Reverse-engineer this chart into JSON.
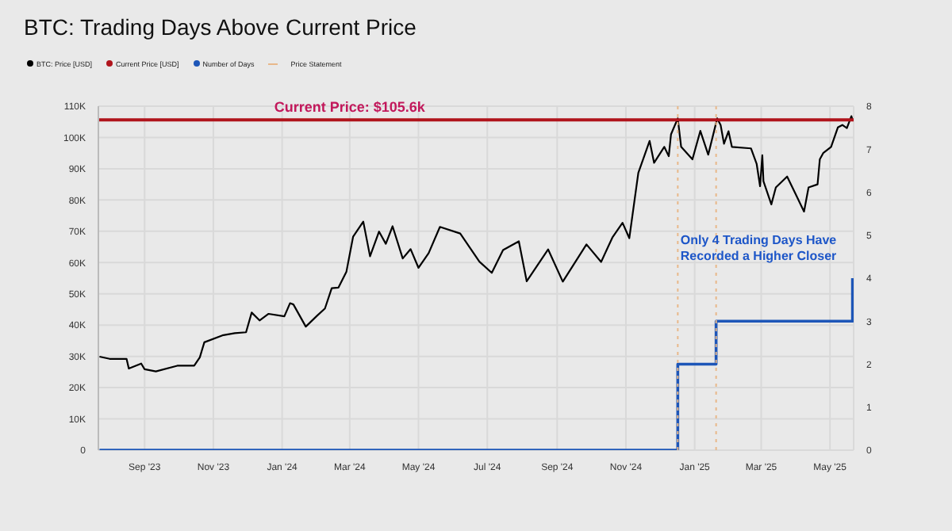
{
  "chart_data": {
    "type": "line",
    "title": "BTC: Trading Days Above Current Price",
    "xlim": [
      "2023-07-22",
      "2025-05-22"
    ],
    "xticks": [
      {
        "value": "2023-09-01",
        "label": "Sep '23"
      },
      {
        "value": "2023-11-01",
        "label": "Nov '23"
      },
      {
        "value": "2024-01-01",
        "label": "Jan '24"
      },
      {
        "value": "2024-03-01",
        "label": "Mar '24"
      },
      {
        "value": "2024-05-01",
        "label": "May '24"
      },
      {
        "value": "2024-07-01",
        "label": "Jul '24"
      },
      {
        "value": "2024-09-01",
        "label": "Sep '24"
      },
      {
        "value": "2024-11-01",
        "label": "Nov '24"
      },
      {
        "value": "2025-01-01",
        "label": "Jan '25"
      },
      {
        "value": "2025-03-01",
        "label": "Mar '25"
      },
      {
        "value": "2025-05-01",
        "label": "May '25"
      }
    ],
    "ylim": [
      0,
      110000
    ],
    "yticks": [
      0,
      {
        "value": 10000,
        "label": "10K"
      },
      {
        "value": 20000,
        "label": "20K"
      },
      {
        "value": 30000,
        "label": "30K"
      },
      {
        "value": 40000,
        "label": "40K"
      },
      {
        "value": 50000,
        "label": "50K"
      },
      {
        "value": 60000,
        "label": "60K"
      },
      {
        "value": 70000,
        "label": "70K"
      },
      {
        "value": 80000,
        "label": "80K"
      },
      {
        "value": 90000,
        "label": "90K"
      },
      {
        "value": 100000,
        "label": "100K"
      },
      {
        "value": 110000,
        "label": "110K"
      }
    ],
    "y2lim": [
      0,
      8
    ],
    "y2ticks": [
      0,
      1,
      2,
      3,
      4,
      5,
      6,
      7,
      8
    ],
    "grid": true,
    "legend": "top left",
    "marker": "none",
    "series": [
      {
        "name": "BTC: Price [USD]",
        "color": "#000000",
        "x": [
          "2023-07-23",
          "2023-08-01",
          "2023-08-16",
          "2023-08-18",
          "2023-08-29",
          "2023-09-01",
          "2023-09-11",
          "2023-09-30",
          "2023-10-15",
          "2023-10-20",
          "2023-10-24",
          "2023-11-09",
          "2023-11-20",
          "2023-11-30",
          "2023-12-05",
          "2023-12-12",
          "2023-12-20",
          "2024-01-03",
          "2024-01-08",
          "2024-01-11",
          "2024-01-22",
          "2024-02-01",
          "2024-02-08",
          "2024-02-14",
          "2024-02-20",
          "2024-02-27",
          "2024-03-04",
          "2024-03-13",
          "2024-03-19",
          "2024-03-27",
          "2024-04-02",
          "2024-04-08",
          "2024-04-17",
          "2024-04-24",
          "2024-05-01",
          "2024-05-10",
          "2024-05-20",
          "2024-06-07",
          "2024-06-24",
          "2024-07-05",
          "2024-07-15",
          "2024-07-29",
          "2024-08-05",
          "2024-08-24",
          "2024-09-06",
          "2024-09-27",
          "2024-10-10",
          "2024-10-20",
          "2024-10-29",
          "2024-11-04",
          "2024-11-12",
          "2024-11-22",
          "2024-11-26",
          "2024-12-05",
          "2024-12-09",
          "2024-12-11",
          "2024-12-17",
          "2024-12-20",
          "2024-12-30",
          "2025-01-06",
          "2025-01-13",
          "2025-01-21",
          "2025-01-24",
          "2025-01-27",
          "2025-01-31",
          "2025-02-03",
          "2025-02-20",
          "2025-02-25",
          "2025-02-28",
          "2025-03-02",
          "2025-03-03",
          "2025-03-10",
          "2025-03-14",
          "2025-03-24",
          "2025-03-31",
          "2025-04-08",
          "2025-04-12",
          "2025-04-20",
          "2025-04-22",
          "2025-04-25",
          "2025-05-02",
          "2025-05-08",
          "2025-05-12",
          "2025-05-16",
          "2025-05-20",
          "2025-05-21"
        ],
        "values": [
          29900,
          29200,
          29200,
          26100,
          27700,
          25900,
          25200,
          27000,
          27000,
          29700,
          34500,
          36700,
          37400,
          37700,
          44000,
          41500,
          43600,
          42800,
          47000,
          46600,
          39500,
          43000,
          45300,
          51800,
          52000,
          57000,
          68300,
          73100,
          62000,
          69900,
          66000,
          71600,
          61300,
          64300,
          58300,
          63000,
          71400,
          69300,
          60300,
          56700,
          64000,
          66800,
          54000,
          64200,
          53900,
          65800,
          60200,
          68000,
          72700,
          67800,
          88700,
          98900,
          91900,
          97000,
          94000,
          101000,
          106100,
          97000,
          93000,
          102100,
          94500,
          106100,
          104000,
          98000,
          102000,
          97000,
          96500,
          91500,
          84400,
          94300,
          86000,
          78600,
          84000,
          87500,
          82300,
          76300,
          84000,
          85000,
          93000,
          95000,
          97000,
          103200,
          104000,
          103000,
          106800,
          105600
        ]
      },
      {
        "name": "Number of Days",
        "color": "#1d56b8",
        "type": "step",
        "axis": "y2",
        "x": [
          "2023-07-23",
          "2024-12-17",
          "2025-01-20",
          "2025-05-20",
          "2025-05-21"
        ],
        "values": [
          0,
          2,
          3,
          3,
          4
        ]
      }
    ],
    "ref_lines": [
      {
        "axis": "y",
        "value": 105600,
        "label": "Current Price [USD]",
        "color": "#b0141c"
      },
      {
        "axis": "x",
        "value": "2024-12-17",
        "label": "Price Statement",
        "color": "#e8b88a",
        "line_style": "dotted"
      },
      {
        "axis": "x",
        "value": "2025-01-20",
        "label": null,
        "color": "#e8b88a",
        "line_style": "dotted"
      }
    ],
    "annotations": [
      {
        "text": "Current Price: $105.6k",
        "x": "2024-03-01",
        "y": 105600
      },
      "Only 4 Trading Days Have Recorded a Higher Closer"
    ]
  }
}
